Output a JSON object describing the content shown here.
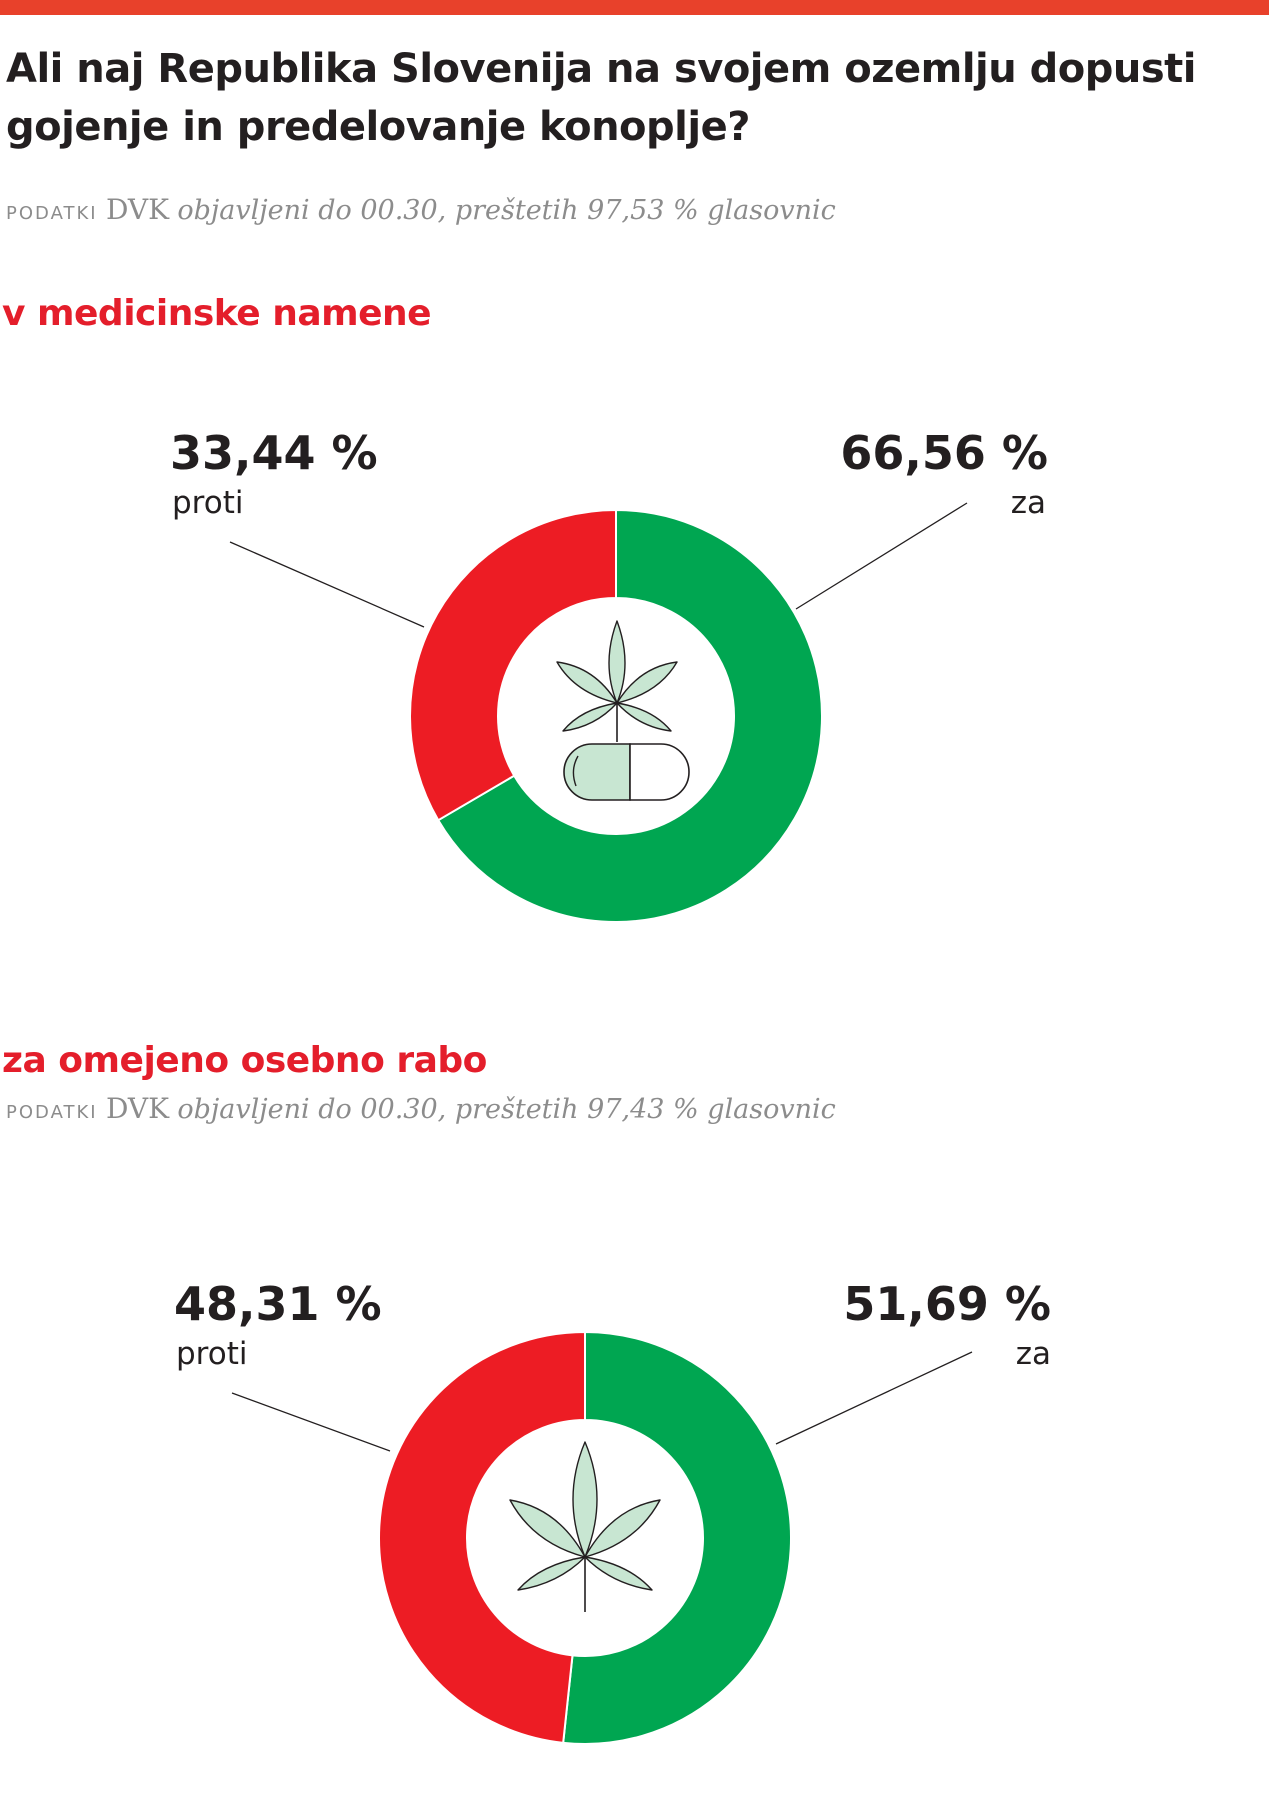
{
  "title": "Ali naj Republika Slovenija na svojem ozemlju dopusti gojenje in predelovanje konoplje?",
  "sections": [
    {
      "title": "v medicinske namene",
      "source": {
        "label": "PODATKI",
        "org": "DVK",
        "note": "objavljeni do 00.30, preštetih 97,53 % glasovnic"
      }
    },
    {
      "title": "za omejeno osebno rabo",
      "source": {
        "label": "PODATKI",
        "org": "DVK",
        "note": "objavljeni do 00.30, preštetih 97,43 % glasovnic"
      }
    }
  ],
  "chart_data": [
    {
      "type": "pie",
      "categories": [
        "za",
        "proti"
      ],
      "values": [
        66.56,
        33.44
      ],
      "labels": [
        "66,56 %",
        "33,44 %"
      ],
      "colors": [
        "#00a651",
        "#ed1c24"
      ],
      "icon": "cannabis-leaf-capsule-icon"
    },
    {
      "type": "pie",
      "categories": [
        "za",
        "proti"
      ],
      "values": [
        51.69,
        48.31
      ],
      "labels": [
        "51,69 %",
        "48,31 %"
      ],
      "colors": [
        "#00a651",
        "#ed1c24"
      ],
      "icon": "cannabis-leaf-icon"
    }
  ]
}
